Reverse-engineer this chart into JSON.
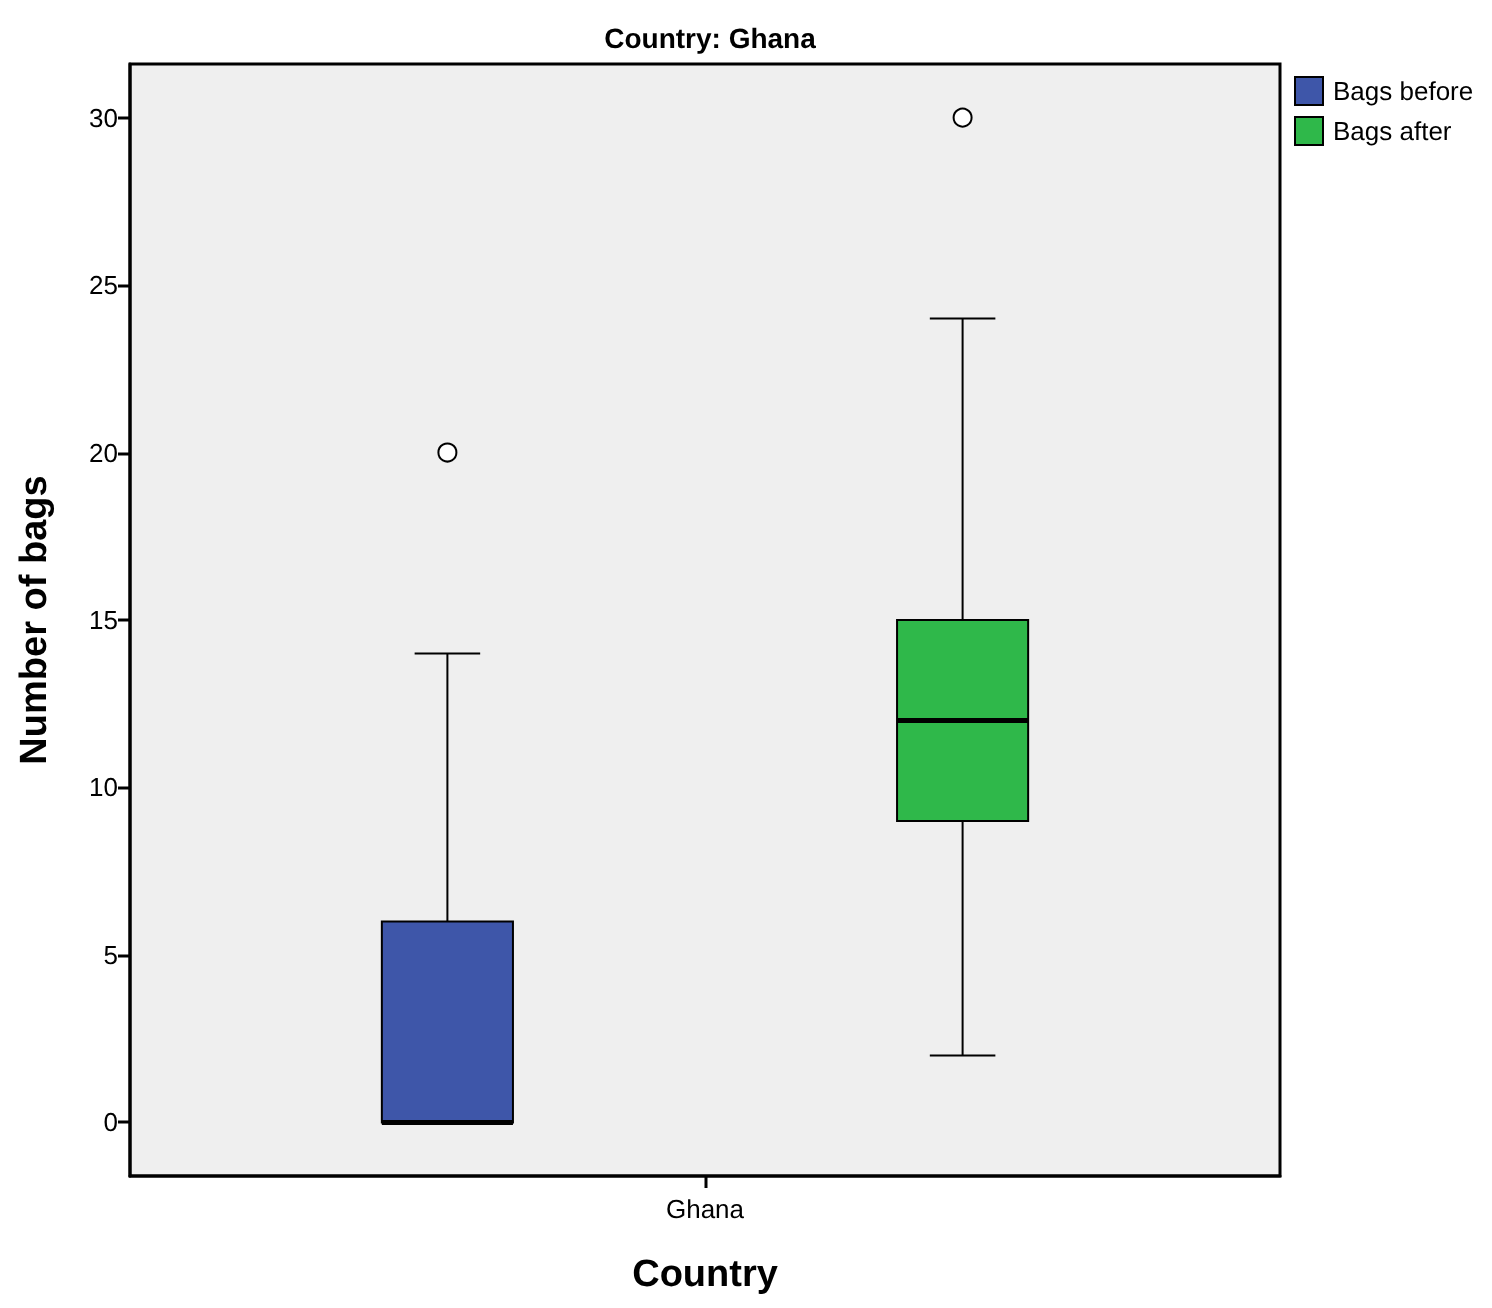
{
  "chart_data": {
    "type": "box",
    "title": "Country: Ghana",
    "xlabel": "Country",
    "ylabel": "Number of bags",
    "categories": [
      "Ghana"
    ],
    "series": [
      {
        "name": "Bags before",
        "color": "#3e56a9",
        "boxes": [
          {
            "low": 0,
            "q1": 0,
            "median": 0,
            "q3": 6,
            "high": 14,
            "outliers": [
              20
            ]
          }
        ]
      },
      {
        "name": "Bags after",
        "color": "#2fb84a",
        "boxes": [
          {
            "low": 2,
            "q1": 9,
            "median": 12,
            "q3": 15,
            "high": 24,
            "outliers": [
              30
            ]
          }
        ]
      }
    ],
    "ylim": [
      -1.6,
      31.6
    ],
    "yticks": [
      0,
      5,
      10,
      15,
      20,
      25,
      30
    ],
    "legend": "top right"
  }
}
